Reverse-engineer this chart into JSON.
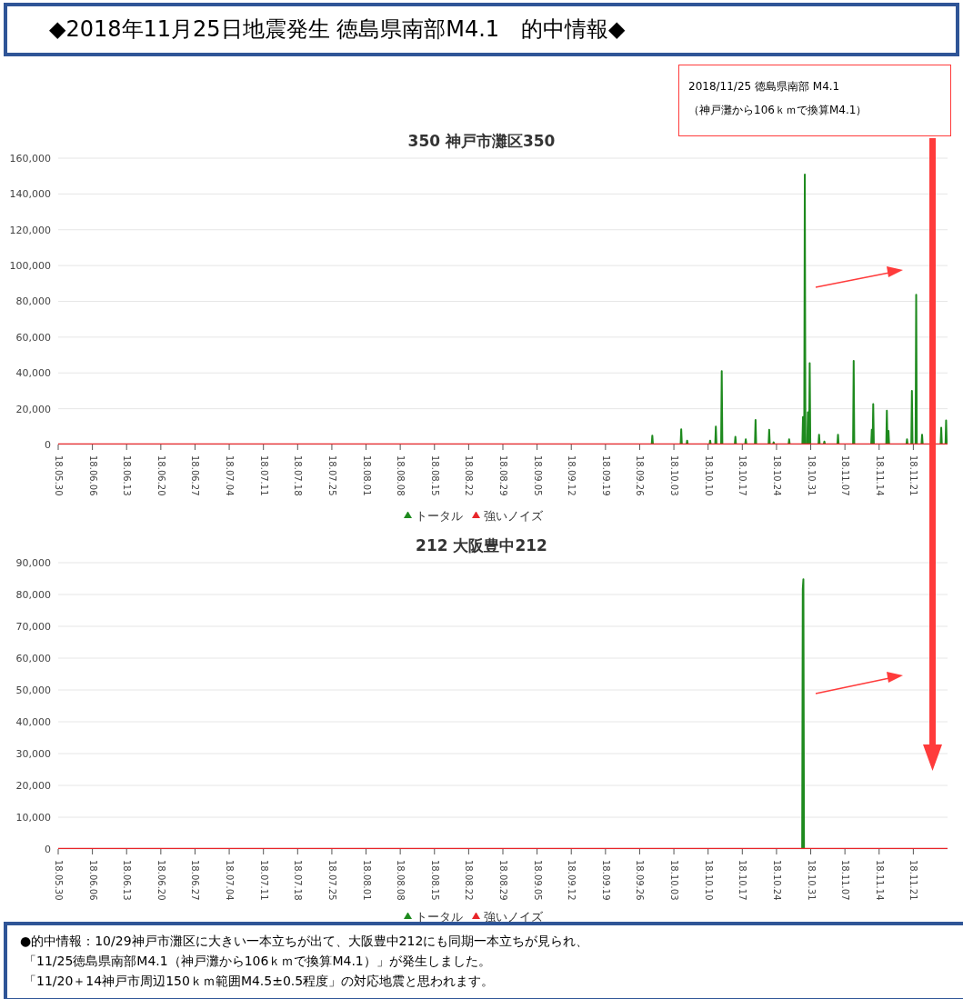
{
  "chart_data": [
    {
      "type": "line",
      "title": "◆2018年11月25日地震発生 徳島県南部M4.1　的中情報◆",
      "subtitle": "350 神戸市灘区350",
      "annotations": [
        "2018/11/25 徳島県南部 M4.1",
        "（神戸灘から106ｋｍで換算M4.1）"
      ],
      "series": [
        {
          "name": "トータル",
          "color": "#1e8a1e",
          "x": [
            "2018-09-28T11:00",
            "2018-09-28T14:00",
            "2018-09-28T17:00",
            "2018-10-04T09:00",
            "2018-10-04T12:00",
            "2018-10-04T15:00",
            "2018-10-05T14:00",
            "2018-10-05T17:00",
            "2018-10-05T20:00",
            "2018-10-10T07:00",
            "2018-10-10T10:00",
            "2018-10-10T13:00",
            "2018-10-11T11:00",
            "2018-10-11T14:00",
            "2018-10-11T17:00",
            "2018-10-12T16:00",
            "2018-10-12T19:00",
            "2018-10-12T22:00",
            "2018-10-15T11:00",
            "2018-10-15T14:00",
            "2018-10-15T17:00",
            "2018-10-17T14:00",
            "2018-10-17T17:00",
            "2018-10-17T20:00",
            "2018-10-19T14:00",
            "2018-10-19T17:00",
            "2018-10-19T20:00",
            "2018-10-22T09:00",
            "2018-10-22T12:00",
            "2018-10-22T15:00",
            "2018-10-23T07:00",
            "2018-10-23T10:00",
            "2018-10-23T13:00",
            "2018-10-26T11:00",
            "2018-10-26T14:00",
            "2018-10-26T17:00",
            "2018-10-29T07:00",
            "2018-10-29T10:00",
            "2018-10-29T13:00",
            "2018-10-29T16:00",
            "2018-10-29T19:00",
            "2018-10-29T22:00",
            "2018-10-30T07:00",
            "2018-10-30T10:00",
            "2018-10-30T13:00",
            "2018-10-30T16:00",
            "2018-10-30T19:00",
            "2018-10-30T22:00",
            "2018-11-01T14:00",
            "2018-11-01T17:00",
            "2018-11-01T20:00",
            "2018-11-02T16:00",
            "2018-11-02T19:00",
            "2018-11-02T22:00",
            "2018-11-05T11:00",
            "2018-11-05T14:00",
            "2018-11-05T17:00",
            "2018-11-08T16:00",
            "2018-11-08T19:00",
            "2018-11-08T22:00",
            "2018-11-12T09:00",
            "2018-11-12T12:00",
            "2018-11-12T15:00",
            "2018-11-12T16:00",
            "2018-11-12T19:00",
            "2018-11-12T22:00",
            "2018-11-15T11:00",
            "2018-11-15T14:00",
            "2018-11-15T17:00",
            "2018-11-15T19:00",
            "2018-11-15T22:00",
            "2018-11-16T01:00",
            "2018-11-19T14:00",
            "2018-11-19T17:00",
            "2018-11-19T20:00",
            "2018-11-20T14:00",
            "2018-11-20T17:00",
            "2018-11-20T20:00",
            "2018-11-21T11:00",
            "2018-11-21T14:00",
            "2018-11-21T17:00",
            "2018-11-22T16:00",
            "2018-11-22T19:00",
            "2018-11-22T22:00",
            "2018-11-26T14:00",
            "2018-11-26T17:00",
            "2018-11-26T20:00",
            "2018-11-27T14:00",
            "2018-11-27T17:00",
            "2018-11-27T20:00"
          ],
          "values": [
            0,
            5000,
            0,
            0,
            8500,
            0,
            0,
            2200,
            0,
            0,
            2200,
            0,
            0,
            10000,
            0,
            0,
            41000,
            0,
            0,
            4300,
            0,
            0,
            2900,
            0,
            0,
            13700,
            0,
            0,
            8200,
            0,
            0,
            1200,
            0,
            0,
            2900,
            0,
            0,
            15400,
            0,
            0,
            150900,
            0,
            0,
            18000,
            0,
            0,
            45400,
            0,
            0,
            5500,
            0,
            0,
            1700,
            0,
            0,
            5500,
            0,
            0,
            46700,
            0,
            0,
            8200,
            0,
            0,
            22600,
            0,
            0,
            18900,
            0,
            0,
            7600,
            0,
            0,
            2900,
            0,
            0,
            30000,
            0,
            0,
            83700,
            0,
            0,
            5500,
            0,
            0,
            9400,
            0,
            0,
            13400,
            0
          ]
        },
        {
          "name": "強いノイズ",
          "color": "#e8262a",
          "x": [
            "2018-05-30",
            "2018-11-28"
          ],
          "values": [
            0,
            0
          ]
        }
      ],
      "xlim": [
        "2018-05-30",
        "2018-11-28"
      ],
      "xticks": [
        {
          "value": "2018-05-30",
          "label": "18.05.30"
        },
        {
          "value": "2018-06-06",
          "label": "18.06.06"
        },
        {
          "value": "2018-06-13",
          "label": "18.06.13"
        },
        {
          "value": "2018-06-20",
          "label": "18.06.20"
        },
        {
          "value": "2018-06-27",
          "label": "18.06.27"
        },
        {
          "value": "2018-07-04",
          "label": "18.07.04"
        },
        {
          "value": "2018-07-11",
          "label": "18.07.11"
        },
        {
          "value": "2018-07-18",
          "label": "18.07.18"
        },
        {
          "value": "2018-07-25",
          "label": "18.07.25"
        },
        {
          "value": "2018-08-01",
          "label": "18.08.01"
        },
        {
          "value": "2018-08-08",
          "label": "18.08.08"
        },
        {
          "value": "2018-08-15",
          "label": "18.08.15"
        },
        {
          "value": "2018-08-22",
          "label": "18.08.22"
        },
        {
          "value": "2018-08-29",
          "label": "18.08.29"
        },
        {
          "value": "2018-09-05",
          "label": "18.09.05"
        },
        {
          "value": "2018-09-12",
          "label": "18.09.12"
        },
        {
          "value": "2018-09-19",
          "label": "18.09.19"
        },
        {
          "value": "2018-09-26",
          "label": "18.09.26"
        },
        {
          "value": "2018-10-03",
          "label": "18.10.03"
        },
        {
          "value": "2018-10-10",
          "label": "18.10.10"
        },
        {
          "value": "2018-10-17",
          "label": "18.10.17"
        },
        {
          "value": "2018-10-24",
          "label": "18.10.24"
        },
        {
          "value": "2018-10-31",
          "label": "18.10.31"
        },
        {
          "value": "2018-11-07",
          "label": "18.11.07"
        },
        {
          "value": "2018-11-14",
          "label": "18.11.14"
        },
        {
          "value": "2018-11-21",
          "label": "18.11.21"
        }
      ],
      "ylim": [
        0,
        160000
      ],
      "yticks": [
        0,
        {
          "value": 20000,
          "label": "20,000"
        },
        {
          "value": 40000,
          "label": "40,000"
        },
        {
          "value": 60000,
          "label": "60,000"
        },
        {
          "value": 80000,
          "label": "80,000"
        },
        {
          "value": 100000,
          "label": "100,000"
        },
        {
          "value": 120000,
          "label": "120,000"
        },
        {
          "value": 140000,
          "label": "140,000"
        },
        {
          "value": 160000,
          "label": "160,000"
        }
      ],
      "grid": "y",
      "legend": "bottom",
      "marker": "none"
    },
    {
      "type": "line",
      "title": "212 大阪豊中212",
      "annotations": [
        "●的中情報：10/29神戸市灘区に大きい一本立ちが出て、大阪豊中212にも同期一本立ちが見られ、",
        "「11/25徳島県南部M4.1（神戸灘から106ｋｍで換算M4.1）」が発生しました。",
        "「11/20＋14神戸市周辺150ｋｍ範囲M4.5±0.5程度」の対応地震と思われます。"
      ],
      "series": [
        {
          "name": "トータル",
          "color": "#1e8a1e",
          "x": [
            "2018-10-29T06:00",
            "2018-10-29T09:00",
            "2018-10-29T12:00",
            "2018-10-29T15:00"
          ],
          "values": [
            0,
            81800,
            84800,
            0
          ]
        },
        {
          "name": "強いノイズ",
          "color": "#e8262a",
          "x": [
            "2018-05-30",
            "2018-11-28"
          ],
          "values": [
            0,
            0
          ]
        }
      ],
      "xlim": [
        "2018-05-30",
        "2018-11-28"
      ],
      "xticks": [
        {
          "value": "2018-05-30",
          "label": "18.05.30"
        },
        {
          "value": "2018-06-06",
          "label": "18.06.06"
        },
        {
          "value": "2018-06-13",
          "label": "18.06.13"
        },
        {
          "value": "2018-06-20",
          "label": "18.06.20"
        },
        {
          "value": "2018-06-27",
          "label": "18.06.27"
        },
        {
          "value": "2018-07-04",
          "label": "18.07.04"
        },
        {
          "value": "2018-07-11",
          "label": "18.07.11"
        },
        {
          "value": "2018-07-18",
          "label": "18.07.18"
        },
        {
          "value": "2018-07-25",
          "label": "18.07.25"
        },
        {
          "value": "2018-08-01",
          "label": "18.08.01"
        },
        {
          "value": "2018-08-08",
          "label": "18.08.08"
        },
        {
          "value": "2018-08-15",
          "label": "18.08.15"
        },
        {
          "value": "2018-08-22",
          "label": "18.08.22"
        },
        {
          "value": "2018-08-29",
          "label": "18.08.29"
        },
        {
          "value": "2018-09-05",
          "label": "18.09.05"
        },
        {
          "value": "2018-09-12",
          "label": "18.09.12"
        },
        {
          "value": "2018-09-19",
          "label": "18.09.19"
        },
        {
          "value": "2018-09-26",
          "label": "18.09.26"
        },
        {
          "value": "2018-10-03",
          "label": "18.10.03"
        },
        {
          "value": "2018-10-10",
          "label": "18.10.10"
        },
        {
          "value": "2018-10-17",
          "label": "18.10.17"
        },
        {
          "value": "2018-10-24",
          "label": "18.10.24"
        },
        {
          "value": "2018-10-31",
          "label": "18.10.31"
        },
        {
          "value": "2018-11-07",
          "label": "18.11.07"
        },
        {
          "value": "2018-11-14",
          "label": "18.11.14"
        },
        {
          "value": "2018-11-21",
          "label": "18.11.21"
        }
      ],
      "ylim": [
        0,
        90000
      ],
      "yticks": [
        0,
        {
          "value": 10000,
          "label": "10,000"
        },
        {
          "value": 20000,
          "label": "20,000"
        },
        {
          "value": 30000,
          "label": "30,000"
        },
        {
          "value": 40000,
          "label": "40,000"
        },
        {
          "value": 50000,
          "label": "50,000"
        },
        {
          "value": 60000,
          "label": "60,000"
        },
        {
          "value": 70000,
          "label": "70,000"
        },
        {
          "value": 80000,
          "label": "80,000"
        },
        {
          "value": 90000,
          "label": "90,000"
        }
      ],
      "grid": "y",
      "legend": "bottom",
      "marker": "none"
    }
  ]
}
